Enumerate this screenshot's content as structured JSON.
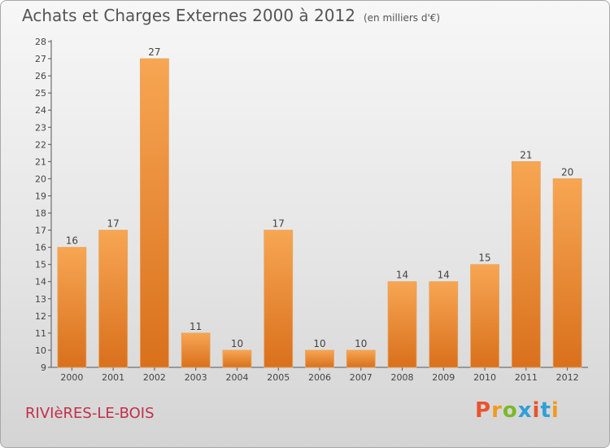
{
  "chart_data": {
    "type": "bar",
    "title": "Achats et Charges Externes 2000 à 2012",
    "subtitle": "(en milliers d'€)",
    "categories": [
      "2000",
      "2001",
      "2002",
      "2003",
      "2004",
      "2005",
      "2006",
      "2007",
      "2008",
      "2009",
      "2010",
      "2011",
      "2012"
    ],
    "values": [
      16,
      17,
      27,
      11,
      10,
      17,
      10,
      10,
      14,
      14,
      15,
      21,
      20
    ],
    "ylim": [
      9,
      28
    ],
    "yticks": [
      9,
      10,
      11,
      12,
      13,
      14,
      15,
      16,
      17,
      18,
      19,
      20,
      21,
      22,
      23,
      24,
      25,
      26,
      27,
      28
    ],
    "grid": false,
    "legend": "none",
    "bar_color": "#f0923a"
  },
  "footer": {
    "commune": "RIVIèRES-LE-BOIS",
    "brand": "Proxiti",
    "brand_colors": [
      "#e8542f",
      "#f29a1f",
      "#7ab929",
      "#2f9fd8",
      "#e8542f",
      "#2f9fd8",
      "#f29a1f"
    ]
  }
}
